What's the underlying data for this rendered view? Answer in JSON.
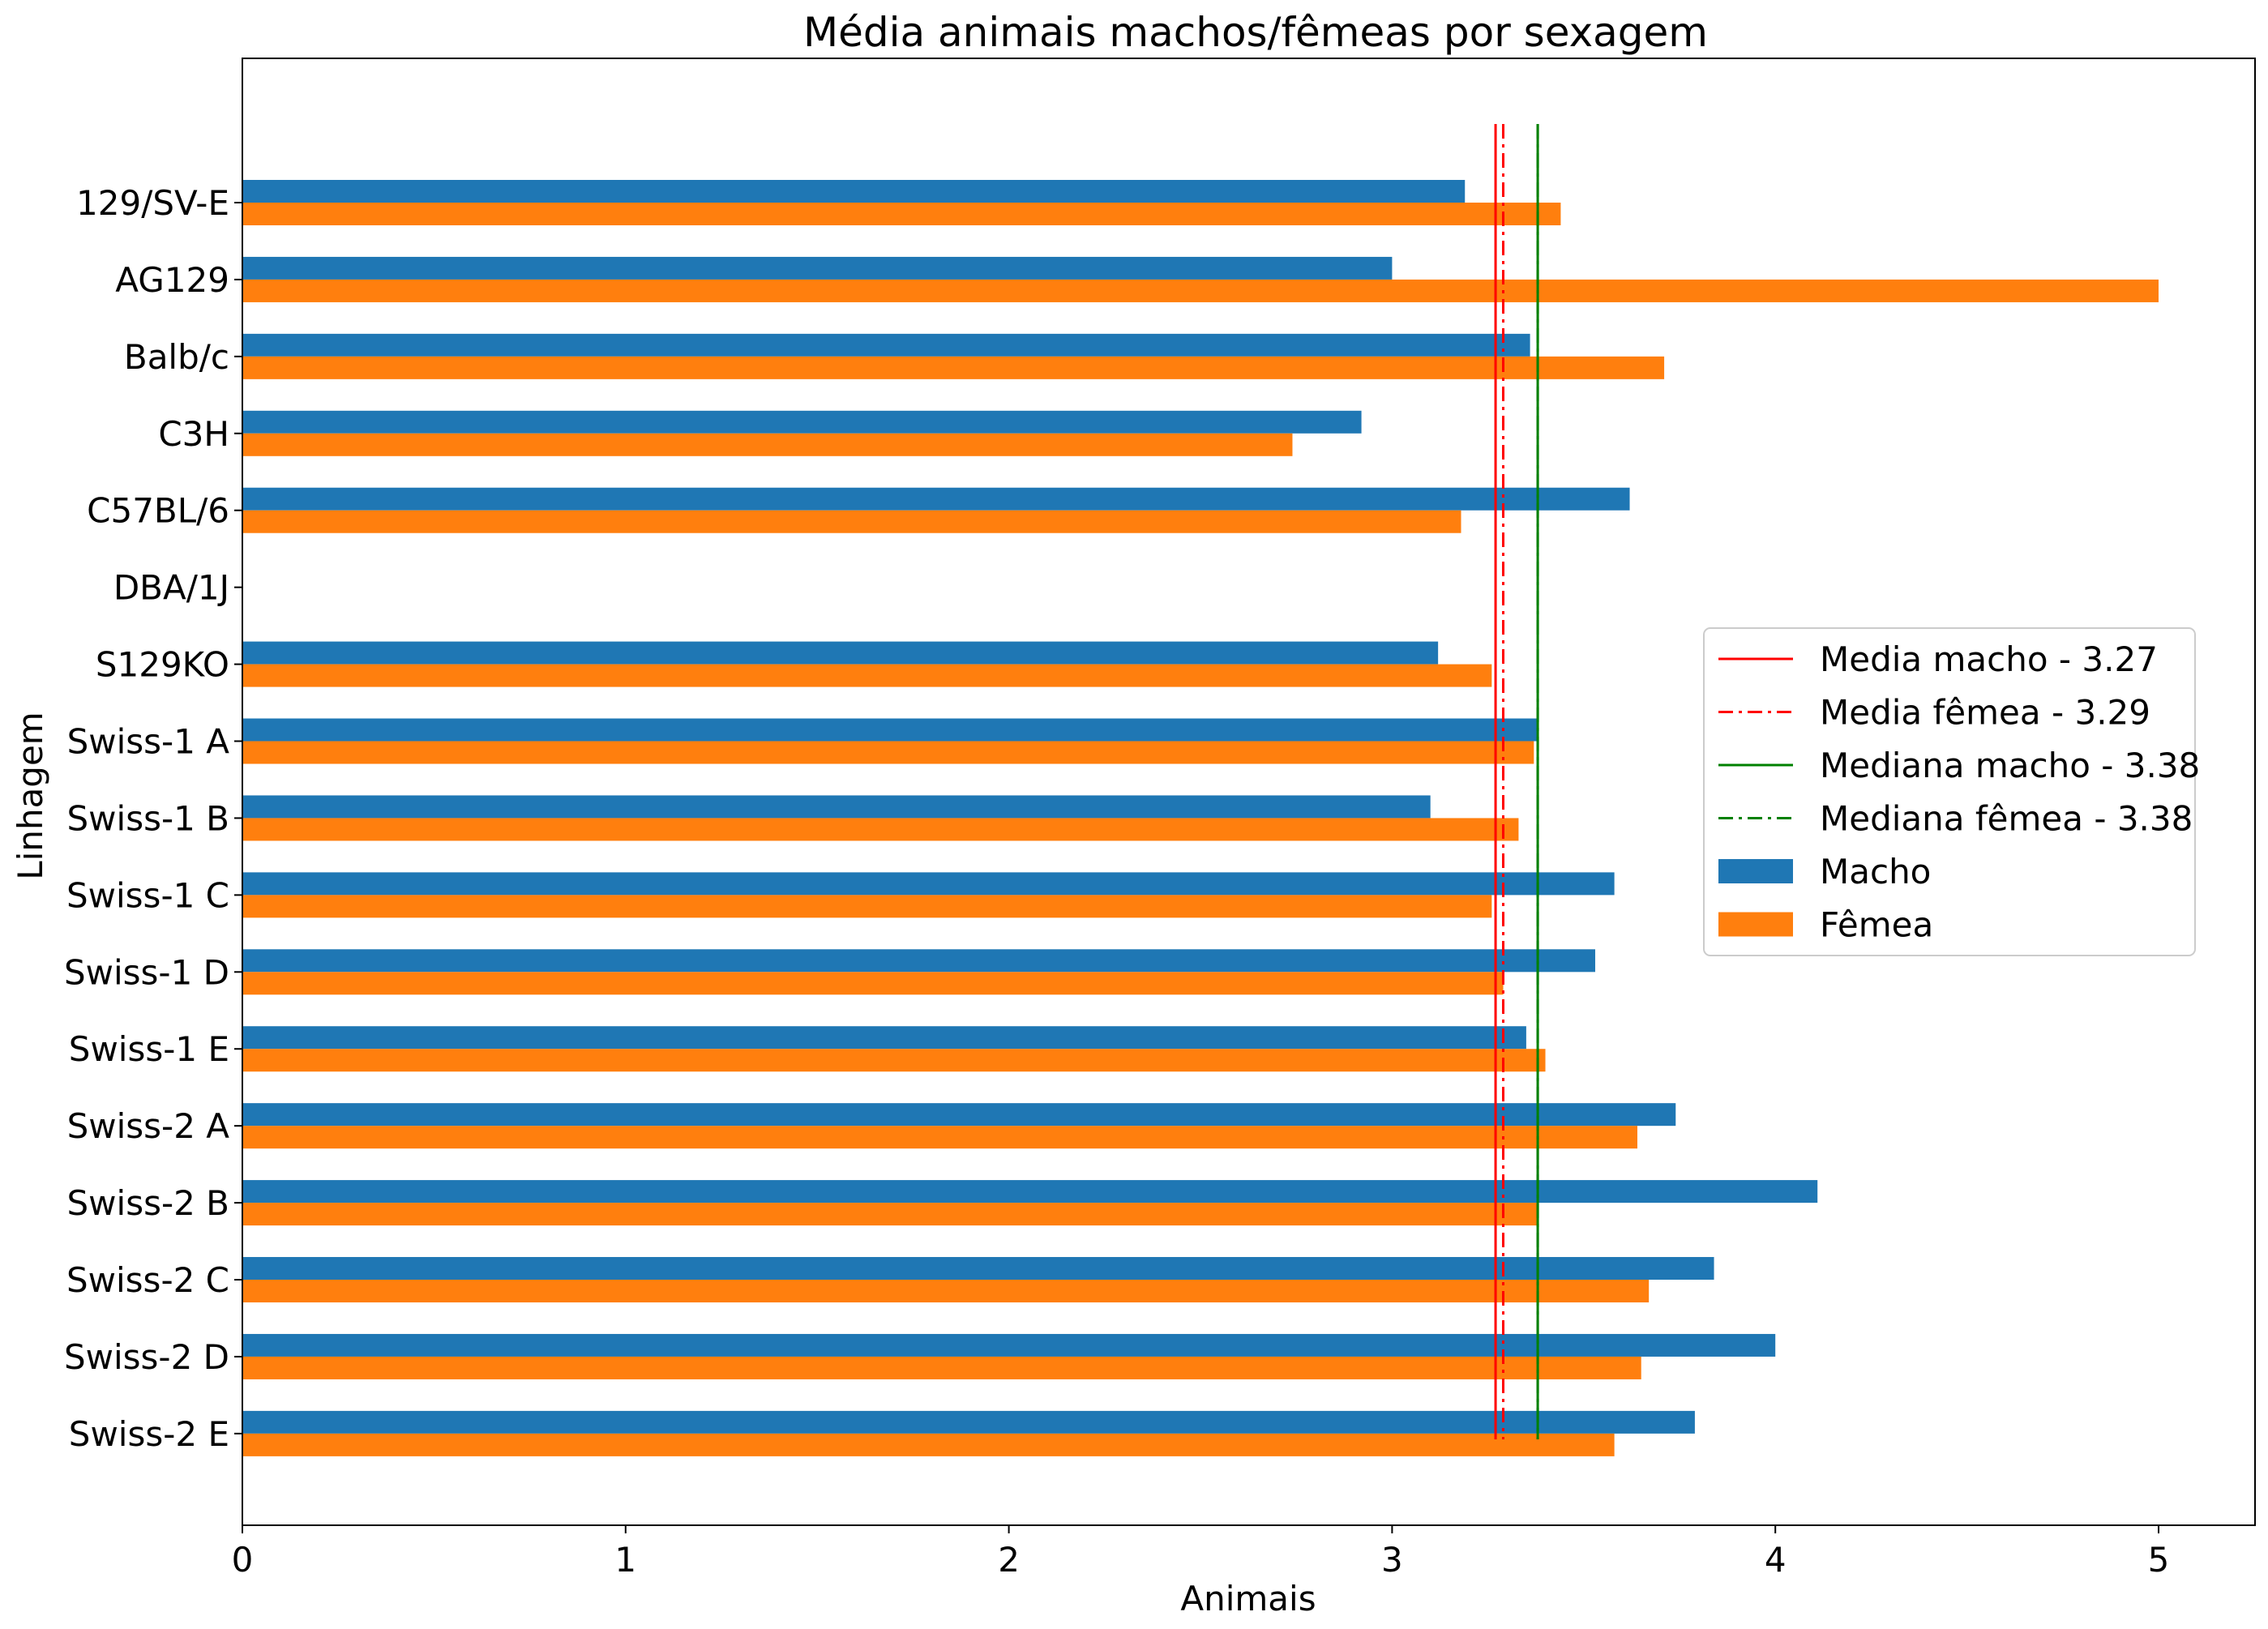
{
  "chart_data": {
    "type": "bar",
    "orientation": "horizontal",
    "title": "Média animais machos/fêmeas por sexagem",
    "xlabel": "Animais",
    "ylabel": "Linhagem",
    "xlim": [
      0,
      5.25
    ],
    "xticks": [
      "0",
      "1",
      "2",
      "3",
      "4",
      "5"
    ],
    "categories": [
      "129/SV-E",
      "AG129",
      "Balb/c",
      "C3H",
      "C57BL/6",
      "DBA/1J",
      "S129KO",
      "Swiss-1 A",
      "Swiss-1 B",
      "Swiss-1 C",
      "Swiss-1 D",
      "Swiss-1 E",
      "Swiss-2 A",
      "Swiss-2 B",
      "Swiss-2 C",
      "Swiss-2 D",
      "Swiss-2 E"
    ],
    "series": [
      {
        "name": "Macho",
        "color": "#1f77b4",
        "values": [
          3.19,
          3.0,
          3.36,
          2.92,
          3.62,
          null,
          3.12,
          3.38,
          3.1,
          3.58,
          3.53,
          3.35,
          3.74,
          4.11,
          3.84,
          4.0,
          3.79
        ]
      },
      {
        "name": "Fêmea",
        "color": "#ff7f0e",
        "values": [
          3.44,
          5.0,
          3.71,
          2.74,
          3.18,
          null,
          3.26,
          3.37,
          3.33,
          3.26,
          3.29,
          3.4,
          3.64,
          3.38,
          3.67,
          3.65,
          3.58
        ]
      }
    ],
    "reference_lines": [
      {
        "label": "Media macho - 3.27",
        "value": 3.27,
        "color": "#ff0000",
        "style": "solid"
      },
      {
        "label": "Media fêmea - 3.29",
        "value": 3.29,
        "color": "#ff0000",
        "style": "dashdot"
      },
      {
        "label": "Mediana macho - 3.38",
        "value": 3.38,
        "color": "#008000",
        "style": "solid"
      },
      {
        "label": "Mediana fêmea - 3.38",
        "value": 3.38,
        "color": "#008000",
        "style": "dashdot"
      }
    ],
    "legend_position": "right",
    "grid": false
  }
}
